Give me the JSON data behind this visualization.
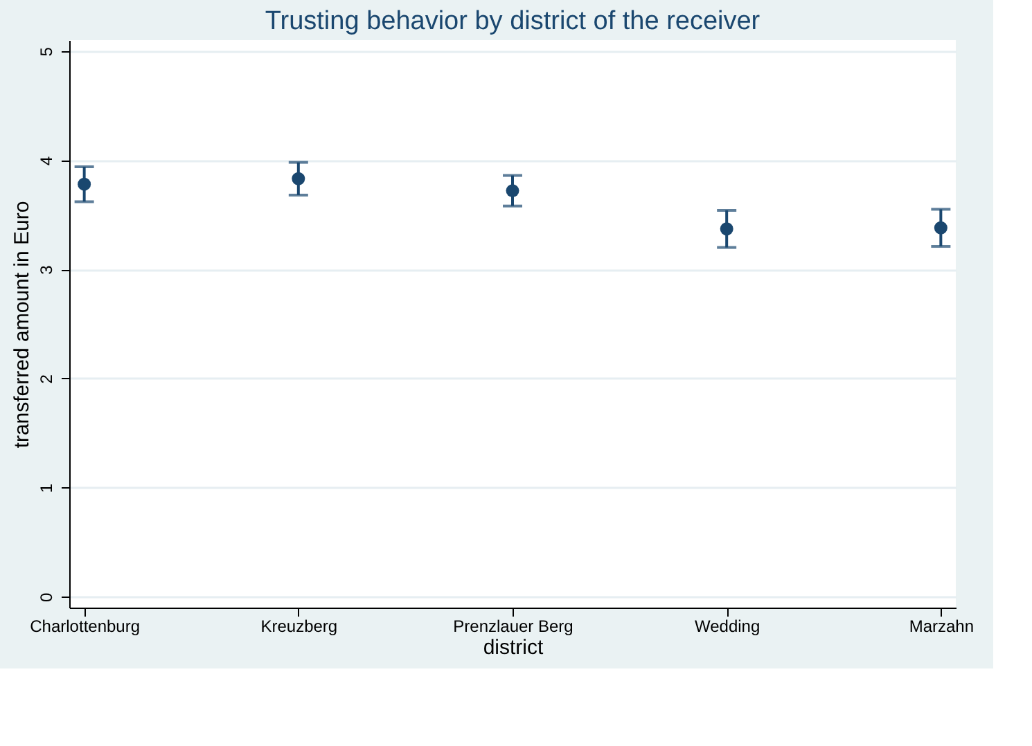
{
  "chart_data": {
    "type": "scatter",
    "title": "Trusting behavior by district of the receiver",
    "xlabel": "district",
    "ylabel": "transferred amount in Euro",
    "categories": [
      "Charlottenburg",
      "Kreuzberg",
      "Prenzlauer Berg",
      "Wedding",
      "Marzahn"
    ],
    "series": [
      {
        "color": "#1a476f",
        "values": [
          3.78,
          3.83,
          3.72,
          3.37,
          3.38
        ],
        "errors": [
          0.16,
          0.15,
          0.14,
          0.17,
          0.17
        ]
      }
    ],
    "ylim": [
      -0.1,
      5.1
    ],
    "yticks": [
      0,
      1,
      2,
      3,
      4,
      5
    ],
    "grid": "y",
    "marker": "circle"
  }
}
